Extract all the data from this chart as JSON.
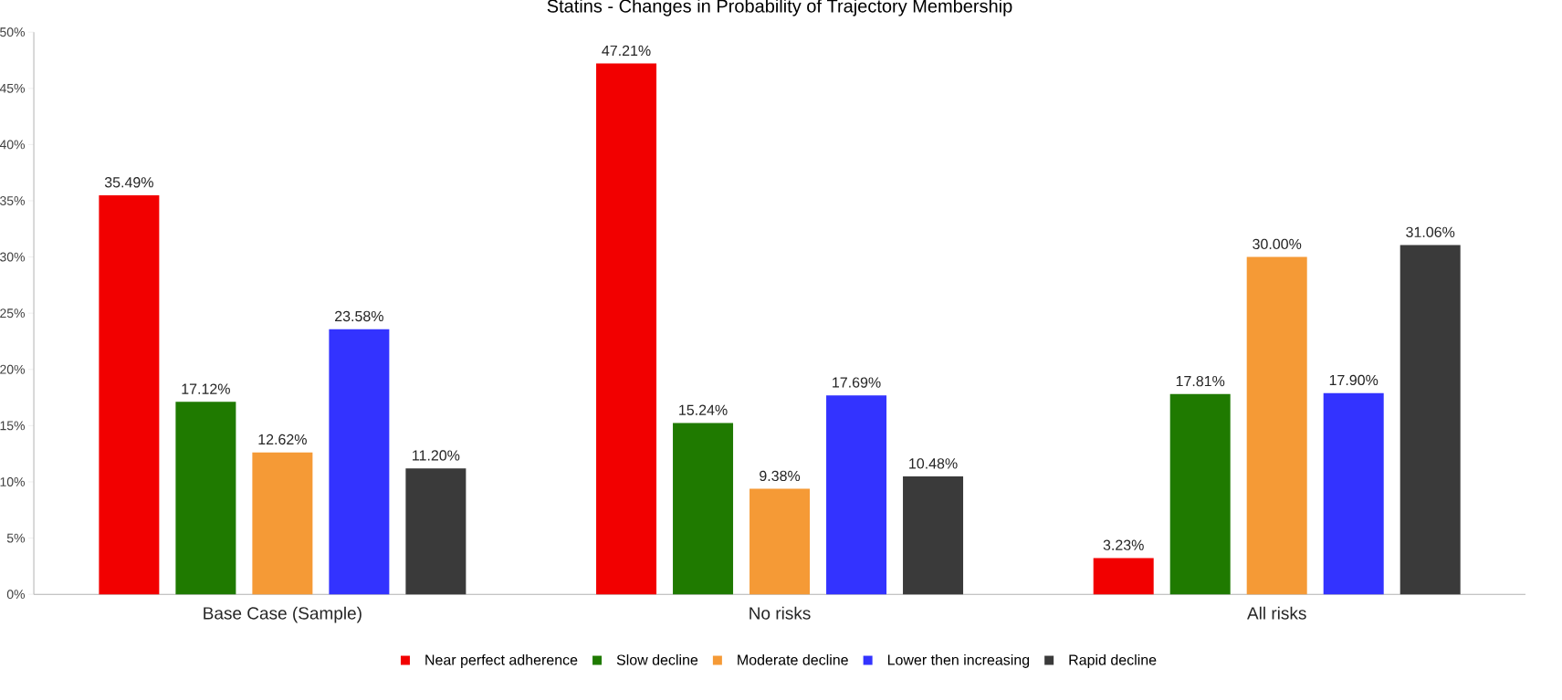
{
  "chart_data": {
    "type": "bar",
    "title": "Statins - Changes in Probability of Trajectory Membership",
    "categories": [
      "Base Case (Sample)",
      "No risks",
      "All risks"
    ],
    "series": [
      {
        "name": "Near perfect adherence",
        "color": "#f20000",
        "values": [
          35.49,
          47.21,
          3.23
        ],
        "value_labels": [
          "35.49%",
          "47.21%",
          "3.23%"
        ]
      },
      {
        "name": "Slow decline",
        "color": "#1f7a00",
        "values": [
          17.12,
          15.24,
          17.81
        ],
        "value_labels": [
          "17.12%",
          "15.24%",
          "17.81%"
        ]
      },
      {
        "name": "Moderate decline",
        "color": "#f59a36",
        "values": [
          12.62,
          9.38,
          30.0
        ],
        "value_labels": [
          "12.62%",
          "9.38%",
          "30.00%"
        ]
      },
      {
        "name": "Lower then increasing",
        "color": "#3333ff",
        "values": [
          23.58,
          17.69,
          17.9
        ],
        "value_labels": [
          "23.58%",
          "17.69%",
          "17.90%"
        ]
      },
      {
        "name": "Rapid decline",
        "color": "#3a3a3a",
        "values": [
          11.2,
          10.48,
          31.06
        ],
        "value_labels": [
          "11.20%",
          "10.48%",
          "31.06%"
        ]
      }
    ],
    "ylim": [
      0,
      50
    ],
    "yticks": [
      {
        "value": 0,
        "label": "0%"
      },
      {
        "value": 5,
        "label": "5%"
      },
      {
        "value": 10,
        "label": "10%"
      },
      {
        "value": 15,
        "label": "15%"
      },
      {
        "value": 20,
        "label": "20%"
      },
      {
        "value": 25,
        "label": "25%"
      },
      {
        "value": 30,
        "label": "30%"
      },
      {
        "value": 35,
        "label": "35%"
      },
      {
        "value": 40,
        "label": "40%"
      },
      {
        "value": 45,
        "label": "45%"
      },
      {
        "value": 50,
        "label": "50%"
      }
    ],
    "grid": false,
    "legend": "bottom"
  }
}
